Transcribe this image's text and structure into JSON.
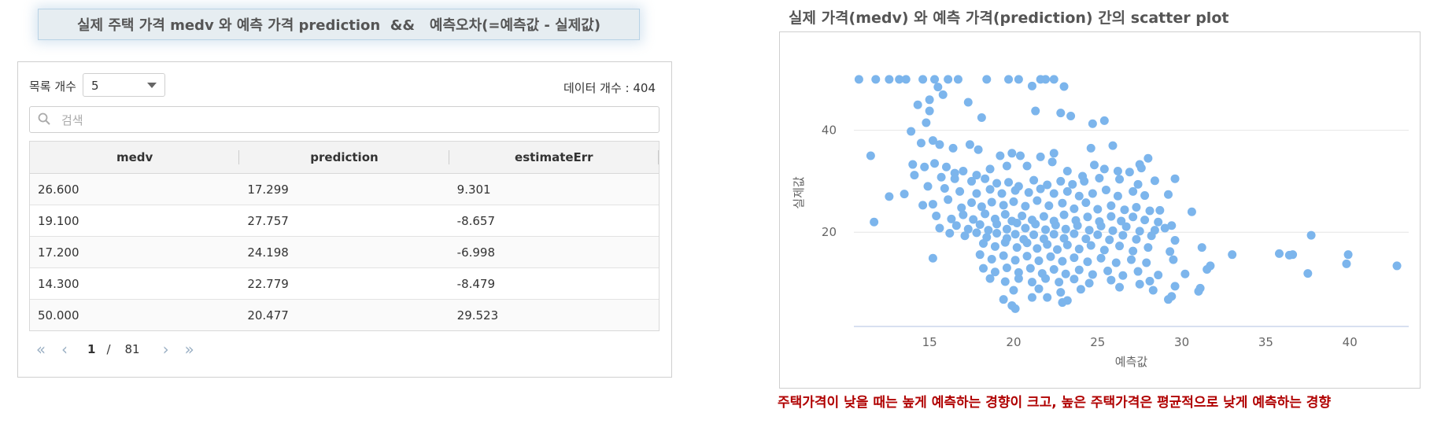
{
  "header": {
    "title": "실제 주택 가격 medv 와 예측 가격 prediction  &&   예측오차(=예측값 - 실제값)"
  },
  "grid_panel": {
    "row_count_label": "목록 개수",
    "row_count_value": "5",
    "data_count": "데이터 개수 : 404",
    "search_placeholder": "검색",
    "columns": [
      "medv",
      "prediction",
      "estimateErr"
    ],
    "rows": [
      [
        "26.600",
        "17.299",
        "9.301"
      ],
      [
        "19.100",
        "27.757",
        "-8.657"
      ],
      [
        "17.200",
        "24.198",
        "-6.998"
      ],
      [
        "14.300",
        "22.779",
        "-8.479"
      ],
      [
        "50.000",
        "20.477",
        "29.523"
      ]
    ],
    "pager": {
      "current": "1",
      "separator": "/",
      "total": "81"
    }
  },
  "chart_data": {
    "type": "scatter",
    "title": "실제 가격(medv) 와 예측 가격(prediction) 간의 scatter plot",
    "xlabel": "예측값",
    "ylabel": "실제값",
    "xlim": [
      10.5,
      43.5
    ],
    "ylim": [
      1.5,
      54
    ],
    "xticks": [
      15,
      20,
      25,
      30,
      35,
      40
    ],
    "yticks": [
      20,
      40
    ],
    "grid": "horizontal",
    "point_color": "#7cb5ec",
    "points": [
      [
        10.8,
        50
      ],
      [
        11.8,
        50
      ],
      [
        12.6,
        50
      ],
      [
        13.2,
        50
      ],
      [
        13.6,
        50
      ],
      [
        14.6,
        50
      ],
      [
        15.3,
        50
      ],
      [
        16.1,
        50
      ],
      [
        16.7,
        50
      ],
      [
        18.4,
        50
      ],
      [
        19.7,
        50
      ],
      [
        20.3,
        50
      ],
      [
        21.6,
        50
      ],
      [
        21.9,
        50
      ],
      [
        22.4,
        50
      ],
      [
        15.5,
        48.5
      ],
      [
        21.1,
        48.7
      ],
      [
        23.0,
        48.6
      ],
      [
        14.3,
        45.0
      ],
      [
        15.0,
        46.0
      ],
      [
        15.8,
        47.0
      ],
      [
        17.3,
        45.5
      ],
      [
        18.1,
        42.5
      ],
      [
        21.3,
        43.8
      ],
      [
        22.8,
        43.4
      ],
      [
        23.4,
        42.8
      ],
      [
        24.7,
        41.3
      ],
      [
        25.4,
        41.9
      ],
      [
        15.0,
        43.8
      ],
      [
        14.8,
        41.5
      ],
      [
        13.9,
        39.8
      ],
      [
        14.5,
        37.5
      ],
      [
        15.2,
        38.0
      ],
      [
        15.6,
        37.2
      ],
      [
        16.4,
        36.5
      ],
      [
        17.4,
        37.2
      ],
      [
        17.9,
        36.2
      ],
      [
        19.2,
        35.0
      ],
      [
        19.9,
        35.5
      ],
      [
        20.4,
        35.0
      ],
      [
        21.6,
        34.8
      ],
      [
        22.4,
        35.5
      ],
      [
        24.6,
        36.5
      ],
      [
        25.9,
        37.0
      ],
      [
        11.5,
        35.0
      ],
      [
        14.0,
        33.3
      ],
      [
        14.7,
        32.8
      ],
      [
        15.3,
        33.5
      ],
      [
        16.0,
        32.8
      ],
      [
        16.5,
        31.6
      ],
      [
        17.0,
        32.0
      ],
      [
        17.8,
        31.2
      ],
      [
        18.6,
        32.4
      ],
      [
        19.6,
        33.0
      ],
      [
        20.8,
        33.0
      ],
      [
        22.3,
        33.8
      ],
      [
        23.2,
        32.0
      ],
      [
        24.1,
        31.0
      ],
      [
        24.8,
        33.2
      ],
      [
        25.4,
        32.4
      ],
      [
        26.2,
        32.0
      ],
      [
        26.9,
        31.8
      ],
      [
        27.5,
        33.3
      ],
      [
        28.0,
        34.5
      ],
      [
        27.6,
        32.6
      ],
      [
        14.1,
        31.2
      ],
      [
        15.7,
        30.8
      ],
      [
        16.5,
        30.5
      ],
      [
        17.5,
        30.0
      ],
      [
        18.3,
        30.5
      ],
      [
        19.0,
        29.6
      ],
      [
        19.7,
        29.8
      ],
      [
        20.3,
        29.0
      ],
      [
        21.2,
        30.2
      ],
      [
        22.0,
        29.3
      ],
      [
        22.8,
        30.0
      ],
      [
        23.5,
        29.4
      ],
      [
        24.2,
        30.0
      ],
      [
        25.1,
        30.6
      ],
      [
        26.3,
        30.4
      ],
      [
        27.4,
        29.4
      ],
      [
        28.4,
        30.1
      ],
      [
        29.6,
        30.5
      ],
      [
        14.9,
        29.0
      ],
      [
        15.9,
        28.6
      ],
      [
        16.8,
        28.0
      ],
      [
        17.8,
        27.6
      ],
      [
        18.6,
        28.4
      ],
      [
        19.3,
        27.6
      ],
      [
        20.1,
        28.2
      ],
      [
        20.9,
        27.8
      ],
      [
        21.6,
        28.5
      ],
      [
        22.4,
        27.6
      ],
      [
        23.2,
        28.0
      ],
      [
        23.9,
        27.1
      ],
      [
        24.7,
        27.6
      ],
      [
        25.5,
        28.3
      ],
      [
        26.2,
        27.1
      ],
      [
        27.1,
        28.0
      ],
      [
        27.8,
        27.2
      ],
      [
        29.2,
        27.4
      ],
      [
        12.6,
        27.0
      ],
      [
        13.5,
        27.5
      ],
      [
        14.6,
        25.3
      ],
      [
        15.2,
        25.5
      ],
      [
        16.1,
        26.4
      ],
      [
        16.9,
        24.8
      ],
      [
        17.5,
        25.8
      ],
      [
        18.1,
        25.0
      ],
      [
        18.7,
        25.9
      ],
      [
        19.4,
        25.3
      ],
      [
        20.0,
        26.0
      ],
      [
        20.7,
        25.1
      ],
      [
        21.4,
        26.2
      ],
      [
        22.1,
        25.2
      ],
      [
        22.9,
        25.7
      ],
      [
        23.6,
        24.6
      ],
      [
        24.3,
        25.8
      ],
      [
        25.0,
        24.5
      ],
      [
        25.8,
        25.2
      ],
      [
        26.6,
        24.4
      ],
      [
        27.3,
        24.9
      ],
      [
        28.1,
        24.2
      ],
      [
        28.7,
        24.3
      ],
      [
        30.6,
        24.0
      ],
      [
        11.7,
        22.0
      ],
      [
        15.4,
        23.2
      ],
      [
        16.3,
        22.6
      ],
      [
        17.0,
        23.4
      ],
      [
        17.6,
        22.5
      ],
      [
        18.3,
        23.6
      ],
      [
        18.9,
        22.6
      ],
      [
        19.5,
        23.5
      ],
      [
        19.9,
        22.2
      ],
      [
        20.5,
        23.2
      ],
      [
        21.1,
        22.4
      ],
      [
        21.8,
        23.1
      ],
      [
        22.4,
        22.2
      ],
      [
        23.0,
        23.4
      ],
      [
        23.7,
        22.3
      ],
      [
        24.4,
        23.0
      ],
      [
        25.1,
        22.1
      ],
      [
        25.8,
        23.1
      ],
      [
        26.4,
        22.2
      ],
      [
        27.1,
        23.0
      ],
      [
        27.8,
        22.4
      ],
      [
        28.6,
        22.0
      ],
      [
        29.4,
        21.3
      ],
      [
        15.6,
        20.8
      ],
      [
        16.6,
        21.3
      ],
      [
        17.3,
        20.6
      ],
      [
        18.0,
        21.5
      ],
      [
        18.5,
        20.4
      ],
      [
        19.0,
        21.6
      ],
      [
        19.6,
        20.6
      ],
      [
        20.2,
        21.8
      ],
      [
        20.7,
        20.8
      ],
      [
        21.3,
        21.6
      ],
      [
        21.9,
        20.5
      ],
      [
        22.5,
        21.4
      ],
      [
        23.1,
        20.6
      ],
      [
        23.8,
        21.3
      ],
      [
        24.5,
        20.4
      ],
      [
        25.2,
        21.2
      ],
      [
        25.9,
        20.3
      ],
      [
        26.7,
        21.1
      ],
      [
        27.5,
        20.2
      ],
      [
        28.4,
        20.4
      ],
      [
        29.0,
        20.8
      ],
      [
        16.2,
        19.8
      ],
      [
        17.1,
        19.3
      ],
      [
        17.8,
        19.9
      ],
      [
        18.4,
        19.0
      ],
      [
        19.0,
        19.8
      ],
      [
        19.6,
        18.8
      ],
      [
        20.1,
        19.6
      ],
      [
        20.6,
        18.6
      ],
      [
        21.2,
        19.5
      ],
      [
        21.8,
        18.7
      ],
      [
        22.4,
        19.6
      ],
      [
        23.0,
        18.8
      ],
      [
        23.6,
        19.7
      ],
      [
        24.3,
        18.7
      ],
      [
        25.0,
        19.5
      ],
      [
        25.7,
        18.5
      ],
      [
        26.5,
        19.4
      ],
      [
        27.3,
        18.6
      ],
      [
        28.2,
        19.3
      ],
      [
        29.6,
        18.4
      ],
      [
        36.4,
        15.5
      ],
      [
        37.7,
        19.4
      ],
      [
        18.2,
        17.8
      ],
      [
        18.9,
        17.2
      ],
      [
        19.5,
        18.0
      ],
      [
        20.2,
        17.0
      ],
      [
        20.8,
        17.9
      ],
      [
        21.4,
        16.8
      ],
      [
        22.0,
        17.6
      ],
      [
        22.6,
        16.6
      ],
      [
        23.2,
        17.5
      ],
      [
        23.9,
        16.7
      ],
      [
        24.6,
        17.4
      ],
      [
        25.4,
        16.5
      ],
      [
        26.3,
        17.3
      ],
      [
        27.1,
        16.3
      ],
      [
        28.0,
        17.0
      ],
      [
        29.3,
        16.2
      ],
      [
        31.2,
        17.0
      ],
      [
        33.0,
        15.6
      ],
      [
        35.8,
        15.8
      ],
      [
        36.6,
        15.6
      ],
      [
        39.9,
        15.6
      ],
      [
        15.2,
        14.9
      ],
      [
        18.0,
        15.6
      ],
      [
        18.7,
        14.7
      ],
      [
        19.4,
        15.4
      ],
      [
        20.1,
        14.5
      ],
      [
        20.8,
        15.3
      ],
      [
        21.5,
        14.4
      ],
      [
        22.2,
        15.2
      ],
      [
        22.9,
        14.3
      ],
      [
        23.6,
        15.0
      ],
      [
        24.4,
        14.2
      ],
      [
        25.2,
        14.9
      ],
      [
        26.1,
        14.0
      ],
      [
        27.0,
        14.6
      ],
      [
        27.9,
        14.0
      ],
      [
        29.5,
        14.6
      ],
      [
        31.7,
        13.4
      ],
      [
        39.8,
        13.8
      ],
      [
        42.8,
        13.4
      ],
      [
        18.2,
        12.9
      ],
      [
        18.9,
        12.2
      ],
      [
        19.6,
        13.0
      ],
      [
        20.3,
        12.1
      ],
      [
        21.0,
        12.9
      ],
      [
        21.7,
        11.9
      ],
      [
        22.4,
        12.7
      ],
      [
        23.1,
        11.8
      ],
      [
        23.9,
        12.6
      ],
      [
        24.7,
        11.7
      ],
      [
        25.6,
        12.4
      ],
      [
        26.5,
        11.5
      ],
      [
        27.4,
        12.3
      ],
      [
        28.6,
        11.6
      ],
      [
        30.2,
        11.8
      ],
      [
        31.5,
        12.7
      ],
      [
        37.5,
        11.9
      ],
      [
        18.6,
        10.9
      ],
      [
        19.5,
        10.3
      ],
      [
        20.3,
        10.9
      ],
      [
        21.1,
        10.2
      ],
      [
        21.9,
        10.9
      ],
      [
        22.7,
        10.2
      ],
      [
        23.6,
        10.8
      ],
      [
        24.5,
        10.0
      ],
      [
        25.8,
        10.6
      ],
      [
        27.5,
        9.8
      ],
      [
        28.1,
        10.4
      ],
      [
        29.6,
        9.4
      ],
      [
        31.1,
        9.0
      ],
      [
        20.0,
        8.6
      ],
      [
        21.5,
        8.9
      ],
      [
        22.8,
        8.2
      ],
      [
        24.0,
        8.8
      ],
      [
        26.3,
        9.2
      ],
      [
        28.3,
        8.6
      ],
      [
        29.4,
        7.4
      ],
      [
        31.0,
        8.4
      ],
      [
        19.4,
        6.8
      ],
      [
        21.1,
        7.2
      ],
      [
        22.0,
        7.2
      ],
      [
        23.2,
        6.6
      ],
      [
        29.2,
        6.8
      ],
      [
        19.9,
        5.6
      ],
      [
        20.1,
        5.0
      ],
      [
        22.9,
        6.2
      ]
    ],
    "annotation": "주택가격이 낮을 때는 높게 예측하는 경향이 크고, 높은 주택가격은 평균적으로 낮게 예측하는 경향"
  }
}
